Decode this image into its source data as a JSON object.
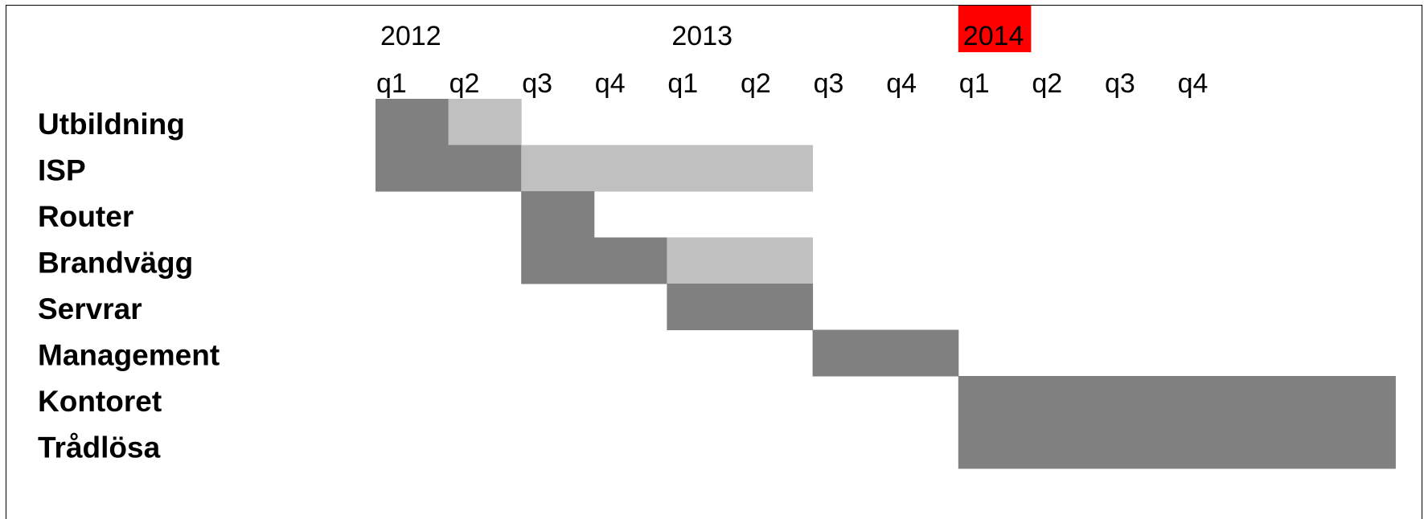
{
  "chart_data": {
    "type": "gantt",
    "title": "",
    "years": [
      {
        "label": "2012",
        "start_quarter": 0,
        "highlight": false
      },
      {
        "label": "2013",
        "start_quarter": 4,
        "highlight": false
      },
      {
        "label": "2014",
        "start_quarter": 8,
        "highlight": true
      }
    ],
    "quarters": [
      "q1",
      "q2",
      "q3",
      "q4",
      "q1",
      "q2",
      "q3",
      "q4",
      "q1",
      "q2",
      "q3",
      "q4"
    ],
    "tasks": [
      {
        "name": "Utbildning",
        "segments": [
          {
            "start": 0,
            "end": 1,
            "shade": "dark"
          },
          {
            "start": 1,
            "end": 2,
            "shade": "light"
          }
        ]
      },
      {
        "name": "ISP",
        "segments": [
          {
            "start": 0,
            "end": 2,
            "shade": "dark"
          },
          {
            "start": 2,
            "end": 6,
            "shade": "light"
          }
        ]
      },
      {
        "name": "Router",
        "segments": [
          {
            "start": 2,
            "end": 3,
            "shade": "dark"
          }
        ]
      },
      {
        "name": "Brandvägg",
        "segments": [
          {
            "start": 2,
            "end": 4,
            "shade": "dark"
          },
          {
            "start": 4,
            "end": 6,
            "shade": "light"
          }
        ]
      },
      {
        "name": "Servrar",
        "segments": [
          {
            "start": 4,
            "end": 6,
            "shade": "dark"
          }
        ]
      },
      {
        "name": "Management",
        "segments": [
          {
            "start": 6,
            "end": 8,
            "shade": "dark"
          }
        ]
      },
      {
        "name": "Kontoret",
        "segments": [
          {
            "start": 8,
            "end": 14,
            "shade": "dark"
          }
        ]
      },
      {
        "name": "Trådlösa",
        "segments": [
          {
            "start": 8,
            "end": 14,
            "shade": "dark"
          }
        ]
      }
    ],
    "colors": {
      "dark": "#808080",
      "light": "#c0c0c0",
      "highlight": "#ff0000"
    },
    "grid": false
  }
}
